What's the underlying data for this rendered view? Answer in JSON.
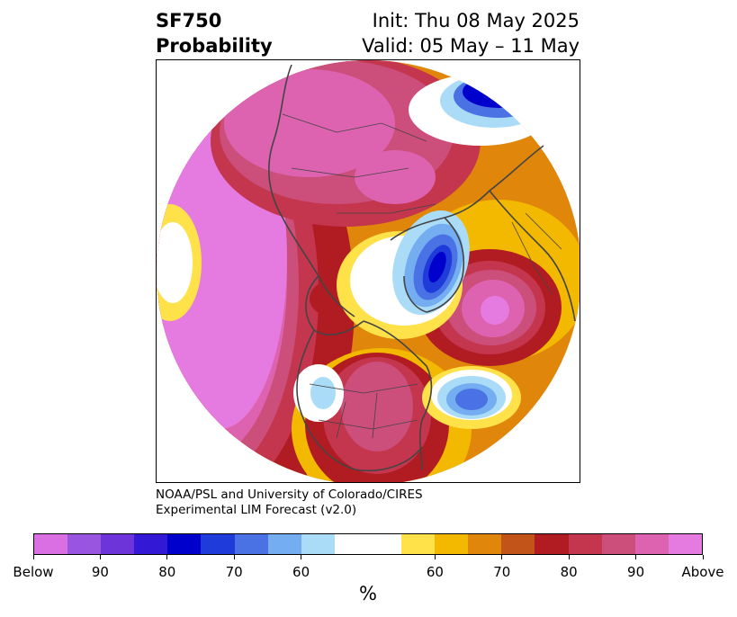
{
  "header": {
    "variable": "SF750",
    "product": "Probability",
    "init": "Init: Thu 08 May 2025",
    "valid": "Valid: 05 May – 11 May"
  },
  "credit": {
    "line1": "NOAA/PSL and University of Colorado/CIRES",
    "line2": "Experimental LIM Forecast (v2.0)"
  },
  "colorbar": {
    "unit": "%",
    "colors": [
      "#d96fe3",
      "#9a55e0",
      "#6c34d9",
      "#3318d6",
      "#0000cc",
      "#1f3bd9",
      "#4a72e4",
      "#74adf0",
      "#aadcf8",
      "#ffffff",
      "#ffffff",
      "#ffe14a",
      "#f3b800",
      "#e0870b",
      "#c35419",
      "#b01c22",
      "#c4364e",
      "#cc4e7a",
      "#dd63b0",
      "#e57ae0"
    ],
    "tick_labels": [
      "Below",
      "90",
      "80",
      "70",
      "60",
      "60",
      "70",
      "80",
      "90",
      "Above"
    ]
  },
  "map": {
    "projection": "north polar stereographic",
    "palette": {
      "above_max": "#e57ae0",
      "above_90": "#dd63b0",
      "above_85": "#cc4e7a",
      "above_80": "#c4364e",
      "above_75": "#b01c22",
      "above_70": "#c35419",
      "above_65": "#e0870b",
      "above_60": "#f3b800",
      "above_55": "#ffe14a",
      "neutral": "#ffffff",
      "below_55": "#aadcf8",
      "below_60": "#74adf0",
      "below_65": "#4a72e4",
      "below_70": "#1f3bd9",
      "below_80": "#0000cc",
      "below_85": "#3318d6",
      "below_90": "#6c34d9"
    }
  }
}
